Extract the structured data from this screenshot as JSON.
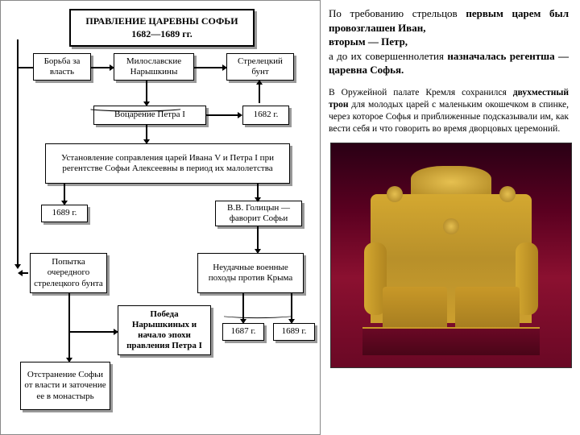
{
  "diagram": {
    "title": "ПРАВЛЕНИЕ ЦАРЕВНЫ СОФЬИ\n1682—1689 гг.",
    "boxes": {
      "b1": "Борьба за власть",
      "b2": "Милославские Нарышкины",
      "b3": "Стрелецкий бунт",
      "b4": "Воцарение Петра I",
      "b5": "1682 г.",
      "b6": "Установление соправления царей Ивана V и Петра I при регентстве Софьи Алексеевны в период их малолетства",
      "b7": "1689 г.",
      "b8": "В.В. Голицын — фаворит Софьи",
      "b9": "Попытка очередного стрелецкого бунта",
      "b10": "Неудачные военные походы против Крыма",
      "b11": "Победа Нарышкиных и начало эпохи правления Петра I",
      "b12": "1687 г.",
      "b13": "1689 г.",
      "b14": "Отстранение Софьи от власти и заточение ее в монастырь"
    }
  },
  "text": {
    "paragraph1_parts": [
      "По требованию стрельцов ",
      "первым царем был провозглашен Иван,",
      "вторым — Петр,",
      "а до их совершеннолетия ",
      "назначалась регентша — царевна Софья."
    ],
    "paragraph2_parts": [
      "В Оружейной палате Кремля сохранился ",
      "двухместный трон",
      " для молодых царей с маленьким окошечком в спинке, через которое Софья и приближенные подсказывали им, как вести себя и что говорить во время дворцовых церемоний."
    ]
  },
  "style": {
    "bg": "#ffffff",
    "border": "#000000",
    "shadow": "#999999",
    "photo_bg": "#5a0020",
    "throne_gold": "#d4a830"
  }
}
